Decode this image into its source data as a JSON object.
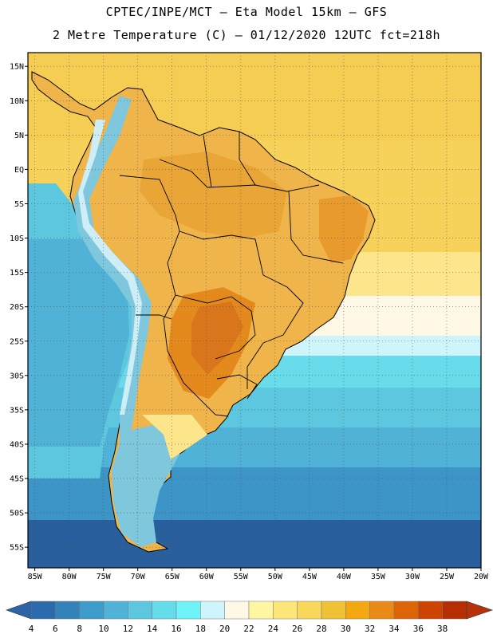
{
  "header": {
    "line1": "CPTEC/INPE/MCT –  Eta Model 15km – GFS",
    "line2": "2 Metre Temperature (C) – 01/12/2020 12UTC fct=218h"
  },
  "map": {
    "region": "South America",
    "lat_range": [
      -58,
      17
    ],
    "lon_range": [
      -86,
      -20
    ],
    "lat_labels": [
      "15N",
      "10N",
      "5N",
      "EQ",
      "5S",
      "10S",
      "15S",
      "20S",
      "25S",
      "30S",
      "35S",
      "40S",
      "45S",
      "50S",
      "55S"
    ],
    "lat_values": [
      15,
      10,
      5,
      0,
      -5,
      -10,
      -15,
      -20,
      -25,
      -30,
      -35,
      -40,
      -45,
      -50,
      -55
    ],
    "lon_labels": [
      "85W",
      "80W",
      "75W",
      "70W",
      "65W",
      "60W",
      "55W",
      "50W",
      "45W",
      "40W",
      "35W",
      "30W",
      "25W",
      "20W"
    ],
    "lon_values": [
      -85,
      -80,
      -75,
      -70,
      -65,
      -60,
      -55,
      -50,
      -45,
      -40,
      -35,
      -30,
      -25,
      -20
    ]
  },
  "colorbar": {
    "labels": [
      "4",
      "6",
      "8",
      "10",
      "12",
      "14",
      "16",
      "18",
      "20",
      "22",
      "24",
      "26",
      "28",
      "30",
      "32",
      "34",
      "36",
      "38"
    ],
    "colors": [
      "#2c6aae",
      "#3382ba",
      "#3e9ccb",
      "#4fb2d6",
      "#5cc7de",
      "#64dcea",
      "#6df3f8",
      "#cdf5fb",
      "#fff8e6",
      "#fff6a3",
      "#fde77a",
      "#f8d75b",
      "#efc235",
      "#f3a711",
      "#e98a16",
      "#de6408",
      "#cd4402",
      "#b52e04"
    ],
    "under_color": "#2d64a6",
    "over_color": "#b73209"
  },
  "palette": {
    "ocean_deep": "#2a5f9e",
    "ocean_mid": "#3c95c6",
    "ocean_cyan": "#57c3dd",
    "ocean_light": "#68dcea",
    "warm_light": "#fde58c",
    "warm_mid": "#f6d25a",
    "land": "#f0b54a",
    "land_hot": "#e79a2a",
    "land_hotter": "#d9801e",
    "andes_cold": "#7fc7dd",
    "andes_ice": "#cdeef6"
  }
}
